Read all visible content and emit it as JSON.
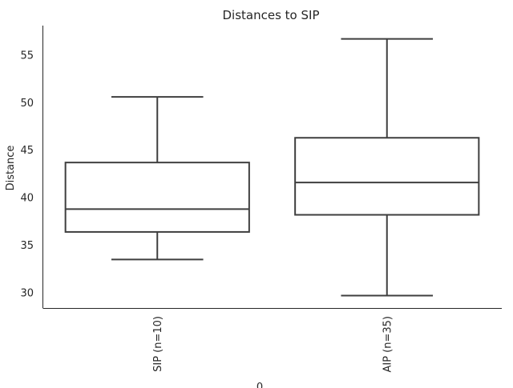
{
  "chart_data": {
    "type": "box",
    "title": "Distances to SIP",
    "ylabel": "Distance",
    "xlabel": "0",
    "ylim": [
      28.4,
      58.1
    ],
    "yticks": [
      30,
      35,
      40,
      45,
      50,
      55
    ],
    "categories": [
      "SIP (n=10)",
      "AIP (n=35)"
    ],
    "boxes": [
      {
        "category": "SIP (n=10)",
        "whisker_low": 33.5,
        "q1": 36.4,
        "median": 38.8,
        "q3": 43.7,
        "whisker_high": 50.6
      },
      {
        "category": "AIP (n=35)",
        "whisker_low": 29.7,
        "q1": 38.2,
        "median": 41.6,
        "q3": 46.3,
        "whisker_high": 56.7
      }
    ],
    "grid": false,
    "colors": {
      "box_line": "#3f3f3f",
      "fill": "#ffffff",
      "axis": "#262626"
    }
  }
}
